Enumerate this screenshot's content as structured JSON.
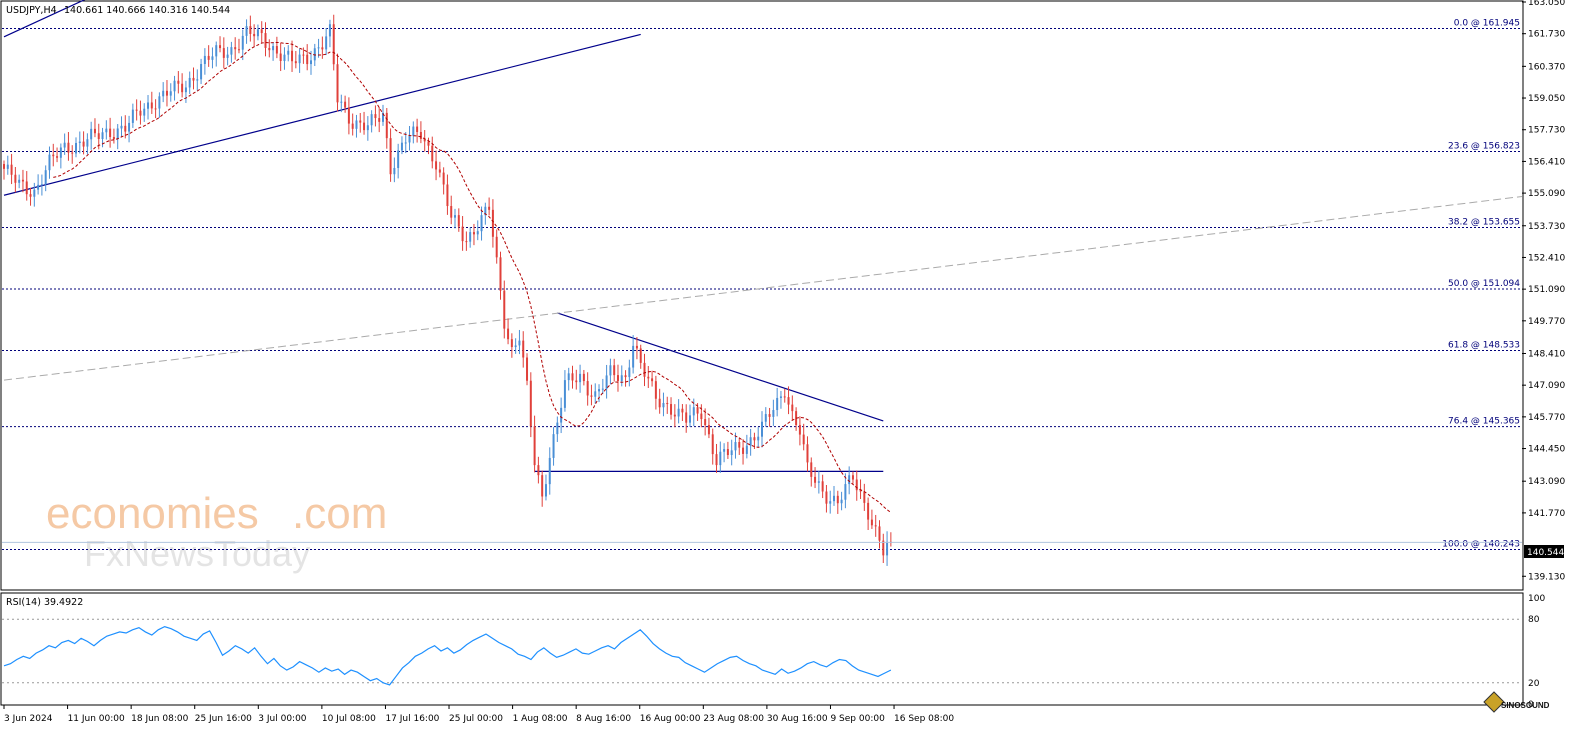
{
  "header": {
    "symbol": "USDJPY,H4",
    "ohlc": "140.661 140.666 140.316 140.544"
  },
  "rsi_header": "RSI(14) 39.4922",
  "current_price_label": "140.544",
  "watermark": {
    "brand_top": "economies",
    "brand_top_suffix": ".com",
    "brand_bottom": "FxNewsToday",
    "corner_logo_text": "SINOSOUND"
  },
  "colors": {
    "bull": "#4a8fd6",
    "bear": "#e0403a",
    "trendline": "#00008b",
    "ma": "#b00000",
    "rsi": "#1e90ff",
    "fib": "#00007a"
  },
  "price_axis": {
    "ylim": [
      138.6,
      163.05
    ],
    "ticks": [
      "163.050",
      "161.730",
      "160.370",
      "159.050",
      "157.730",
      "156.410",
      "155.090",
      "153.730",
      "152.410",
      "151.090",
      "149.770",
      "148.410",
      "147.090",
      "145.770",
      "144.450",
      "143.090",
      "141.770",
      "140.544",
      "139.130"
    ]
  },
  "rsi_axis": {
    "ylim": [
      0,
      100
    ],
    "ticks": [
      "100",
      "80",
      "20",
      "0"
    ],
    "levels": [
      80,
      20
    ]
  },
  "time_axis": {
    "labels": [
      "3 Jun 2024",
      "11 Jun 00:00",
      "18 Jun 08:00",
      "25 Jun 16:00",
      "3 Jul 00:00",
      "10 Jul 08:00",
      "17 Jul 16:00",
      "25 Jul 00:00",
      "1 Aug 08:00",
      "8 Aug 16:00",
      "16 Aug 00:00",
      "23 Aug 08:00",
      "30 Aug 16:00",
      "9 Sep 00:00",
      "16 Sep 08:00"
    ]
  },
  "fibonacci": [
    {
      "label": "0.0 @ 161.945",
      "price": 161.945
    },
    {
      "label": "23.6 @ 156.823",
      "price": 156.823
    },
    {
      "label": "38.2 @ 153.655",
      "price": 153.655
    },
    {
      "label": "50.0 @ 151.094",
      "price": 151.094
    },
    {
      "label": "61.8 @ 148.533",
      "price": 148.533
    },
    {
      "label": "76.4 @ 145.365",
      "price": 145.365
    },
    {
      "label": "100.0 @ 140.243",
      "price": 140.243
    }
  ],
  "chart_data": [
    {
      "type": "candlestick",
      "title": "USDJPY,H4",
      "x_unit": "bar index (H4, 2 bars per label interval of ~42 bars)",
      "x_labels": [
        "3 Jun 2024",
        "11 Jun 00:00",
        "18 Jun 08:00",
        "25 Jun 16:00",
        "3 Jul 00:00",
        "10 Jul 08:00",
        "17 Jul 16:00",
        "25 Jul 00:00",
        "1 Aug 08:00",
        "8 Aug 16:00",
        "16 Aug 00:00",
        "23 Aug 08:00",
        "30 Aug 16:00",
        "9 Sep 00:00",
        "16 Sep 08:00"
      ],
      "close_path": [
        [
          0,
          156.1
        ],
        [
          4,
          155.4
        ],
        [
          8,
          155.2
        ],
        [
          12,
          156.3
        ],
        [
          16,
          157.0
        ],
        [
          20,
          157.2
        ],
        [
          24,
          157.4
        ],
        [
          28,
          157.7
        ],
        [
          32,
          157.8
        ],
        [
          36,
          158.5
        ],
        [
          40,
          159.0
        ],
        [
          44,
          159.3
        ],
        [
          48,
          159.6
        ],
        [
          52,
          160.4
        ],
        [
          56,
          160.9
        ],
        [
          60,
          161.1
        ],
        [
          64,
          161.7
        ],
        [
          68,
          161.6
        ],
        [
          72,
          161.0
        ],
        [
          76,
          160.5
        ],
        [
          80,
          160.8
        ],
        [
          84,
          161.3
        ],
        [
          86,
          161.7
        ],
        [
          88,
          159.0
        ],
        [
          92,
          158.1
        ],
        [
          96,
          157.8
        ],
        [
          100,
          158.4
        ],
        [
          102,
          156.2
        ],
        [
          106,
          157.3
        ],
        [
          110,
          157.6
        ],
        [
          114,
          156.4
        ],
        [
          118,
          154.0
        ],
        [
          122,
          153.2
        ],
        [
          126,
          154.0
        ],
        [
          128,
          154.4
        ],
        [
          130,
          152.1
        ],
        [
          132,
          149.8
        ],
        [
          134,
          148.6
        ],
        [
          136,
          149.2
        ],
        [
          138,
          146.9
        ],
        [
          140,
          143.8
        ],
        [
          142,
          142.4
        ],
        [
          144,
          144.3
        ],
        [
          146,
          145.6
        ],
        [
          148,
          147.1
        ],
        [
          152,
          147.4
        ],
        [
          156,
          146.7
        ],
        [
          160,
          147.5
        ],
        [
          164,
          147.4
        ],
        [
          166,
          149.0
        ],
        [
          168,
          147.9
        ],
        [
          172,
          146.5
        ],
        [
          176,
          146.2
        ],
        [
          180,
          145.6
        ],
        [
          184,
          146.0
        ],
        [
          188,
          144.0
        ],
        [
          192,
          144.3
        ],
        [
          196,
          144.7
        ],
        [
          200,
          145.3
        ],
        [
          204,
          146.3
        ],
        [
          206,
          147.0
        ],
        [
          208,
          145.9
        ],
        [
          210,
          145.2
        ],
        [
          212,
          143.5
        ],
        [
          216,
          142.7
        ],
        [
          220,
          142.2
        ],
        [
          224,
          143.2
        ],
        [
          228,
          141.9
        ],
        [
          230,
          141.0
        ],
        [
          232,
          140.1
        ],
        [
          234,
          140.54
        ]
      ],
      "indicators": [
        {
          "name": "Moving average",
          "style": "dashed",
          "color": "#b00000"
        }
      ],
      "trendlines": [
        {
          "kind": "channel-lower",
          "from": [
            0,
            155.0
          ],
          "to": [
            168,
            161.7
          ]
        },
        {
          "kind": "channel-upper",
          "from": [
            0,
            161.6
          ],
          "to": [
            22,
            163.2
          ]
        },
        {
          "kind": "descending-resistance",
          "from": [
            146,
            150.1
          ],
          "to": [
            232,
            145.6
          ]
        },
        {
          "kind": "horizontal-support",
          "from": [
            140,
            143.5
          ],
          "to": [
            232,
            143.5
          ]
        },
        {
          "kind": "long-gray",
          "from": [
            0,
            147.3
          ],
          "to": [
            410,
            154.95
          ]
        }
      ],
      "ylim": [
        138.6,
        163.05
      ]
    },
    {
      "type": "line",
      "title": "RSI(14) 39.4922",
      "ylim": [
        0,
        100
      ],
      "levels": [
        80,
        20
      ],
      "values": [
        36,
        38,
        42,
        45,
        43,
        48,
        51,
        55,
        53,
        58,
        60,
        57,
        62,
        59,
        55,
        60,
        64,
        66,
        68,
        67,
        70,
        72,
        68,
        65,
        70,
        73,
        71,
        68,
        64,
        62,
        60,
        66,
        69,
        58,
        46,
        50,
        55,
        52,
        48,
        53,
        45,
        38,
        43,
        36,
        32,
        35,
        40,
        37,
        34,
        30,
        34,
        31,
        33,
        28,
        32,
        30,
        26,
        22,
        24,
        20,
        18,
        26,
        34,
        39,
        45,
        48,
        52,
        55,
        50,
        53,
        48,
        51,
        56,
        60,
        63,
        66,
        62,
        58,
        55,
        52,
        47,
        45,
        42,
        49,
        53,
        48,
        44,
        46,
        49,
        52,
        48,
        47,
        50,
        53,
        55,
        52,
        58,
        62,
        66,
        70,
        64,
        57,
        52,
        48,
        45,
        44,
        39,
        36,
        33,
        30,
        34,
        38,
        41,
        44,
        45,
        41,
        38,
        36,
        32,
        30,
        28,
        33,
        29,
        31,
        34,
        38,
        40,
        37,
        35,
        39,
        42,
        41,
        36,
        32,
        30,
        28,
        26,
        29,
        32
      ]
    }
  ]
}
